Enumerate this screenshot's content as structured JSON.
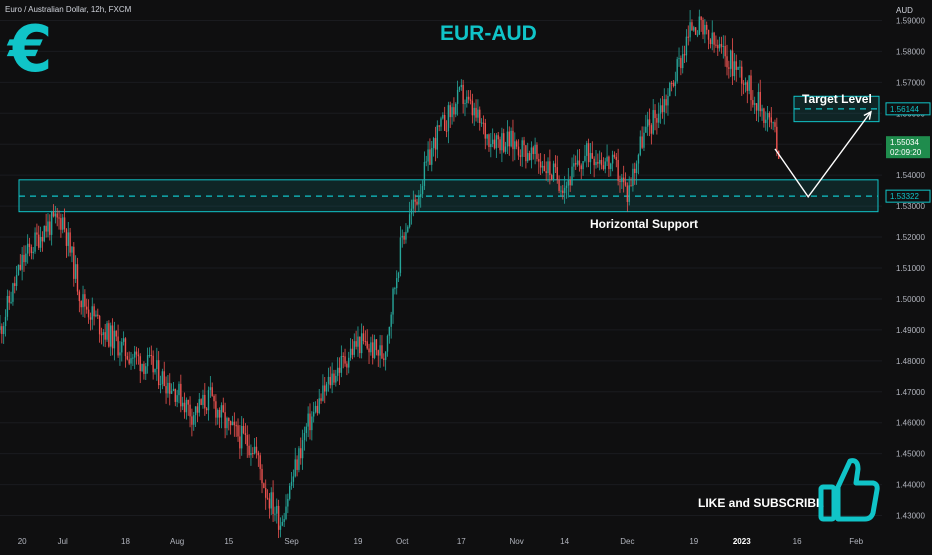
{
  "header": {
    "symbol_line": "Euro / Australian Dollar, 12h, FXCM"
  },
  "branding": {
    "title": "EUR-AUD",
    "currency_symbol": "€",
    "like_text": "LIKE and SUBSCRIBE"
  },
  "colors": {
    "accent": "#10c4c8",
    "up": "#26a69a",
    "down": "#ef5350",
    "background": "#0f0f10",
    "last_price_bg": "#1f8c4d"
  },
  "icons": {
    "thumbs_up": "thumbs-up-icon"
  },
  "chart_data": {
    "type": "candlestick",
    "y_axis": {
      "unit": "AUD",
      "ylim": [
        1.425,
        1.595
      ],
      "ticks": [
        1.43,
        1.44,
        1.45,
        1.46,
        1.47,
        1.48,
        1.49,
        1.5,
        1.51,
        1.52,
        1.53,
        1.54,
        1.55,
        1.56,
        1.57,
        1.58,
        1.59
      ],
      "tick_labels": [
        "1.43000",
        "1.44000",
        "1.45000",
        "1.46000",
        "1.47000",
        "1.48000",
        "1.49000",
        "1.50000",
        "1.51000",
        "1.52000",
        "1.53000",
        "1.54000",
        "1.55000",
        "1.56000",
        "1.57000",
        "1.58000",
        "1.59000"
      ]
    },
    "x_axis": {
      "labels": [
        "20",
        "Jul",
        "18",
        "Aug",
        "15",
        "Sep",
        "19",
        "Oct",
        "17",
        "Nov",
        "14",
        "Dec",
        "19",
        "2023",
        "16",
        "Feb"
      ],
      "label_dates": [
        "2022-06-20",
        "2022-07-01",
        "2022-07-18",
        "2022-08-01",
        "2022-08-15",
        "2022-09-01",
        "2022-09-19",
        "2022-10-01",
        "2022-10-17",
        "2022-11-01",
        "2022-11-14",
        "2022-12-01",
        "2022-12-19",
        "2023-01-01",
        "2023-01-16",
        "2023-02-01"
      ],
      "range": [
        "2022-06-14",
        "2023-02-08"
      ],
      "interval": "12h"
    },
    "price_path": {
      "dates": [
        "2022-06-14",
        "2022-06-20",
        "2022-06-26",
        "2022-07-01",
        "2022-07-06",
        "2022-07-12",
        "2022-07-18",
        "2022-07-25",
        "2022-08-01",
        "2022-08-05",
        "2022-08-10",
        "2022-08-15",
        "2022-08-22",
        "2022-08-25",
        "2022-08-29",
        "2022-09-05",
        "2022-09-12",
        "2022-09-19",
        "2022-09-26",
        "2022-10-01",
        "2022-10-05",
        "2022-10-10",
        "2022-10-17",
        "2022-10-24",
        "2022-11-01",
        "2022-11-07",
        "2022-11-14",
        "2022-11-21",
        "2022-11-28",
        "2022-12-01",
        "2022-12-05",
        "2022-12-12",
        "2022-12-19",
        "2022-12-22",
        "2022-12-27",
        "2023-01-01",
        "2023-01-04",
        "2023-01-09",
        "2023-01-11"
      ],
      "close": [
        1.49,
        1.512,
        1.523,
        1.526,
        1.5,
        1.49,
        1.483,
        1.478,
        1.47,
        1.463,
        1.468,
        1.458,
        1.452,
        1.438,
        1.428,
        1.458,
        1.475,
        1.486,
        1.482,
        1.52,
        1.533,
        1.552,
        1.566,
        1.553,
        1.55,
        1.545,
        1.537,
        1.548,
        1.542,
        1.534,
        1.552,
        1.566,
        1.59,
        1.585,
        1.579,
        1.573,
        1.566,
        1.557,
        1.548
      ]
    },
    "levels": [
      {
        "name": "Horizontal Support",
        "value": 1.53322,
        "label": "1.53322"
      },
      {
        "name": "Target Level",
        "value": 1.56144,
        "label": "1.56144"
      }
    ],
    "last_price": {
      "value": 1.55034,
      "label": "1.55034",
      "countdown": "02:09:20"
    },
    "projection": {
      "dates": [
        "2023-01-10",
        "2023-01-19",
        "2023-02-05"
      ],
      "values": [
        1.5485,
        1.533,
        1.5605
      ]
    },
    "annotations": [
      "Target Level",
      "Horizontal Support"
    ]
  }
}
